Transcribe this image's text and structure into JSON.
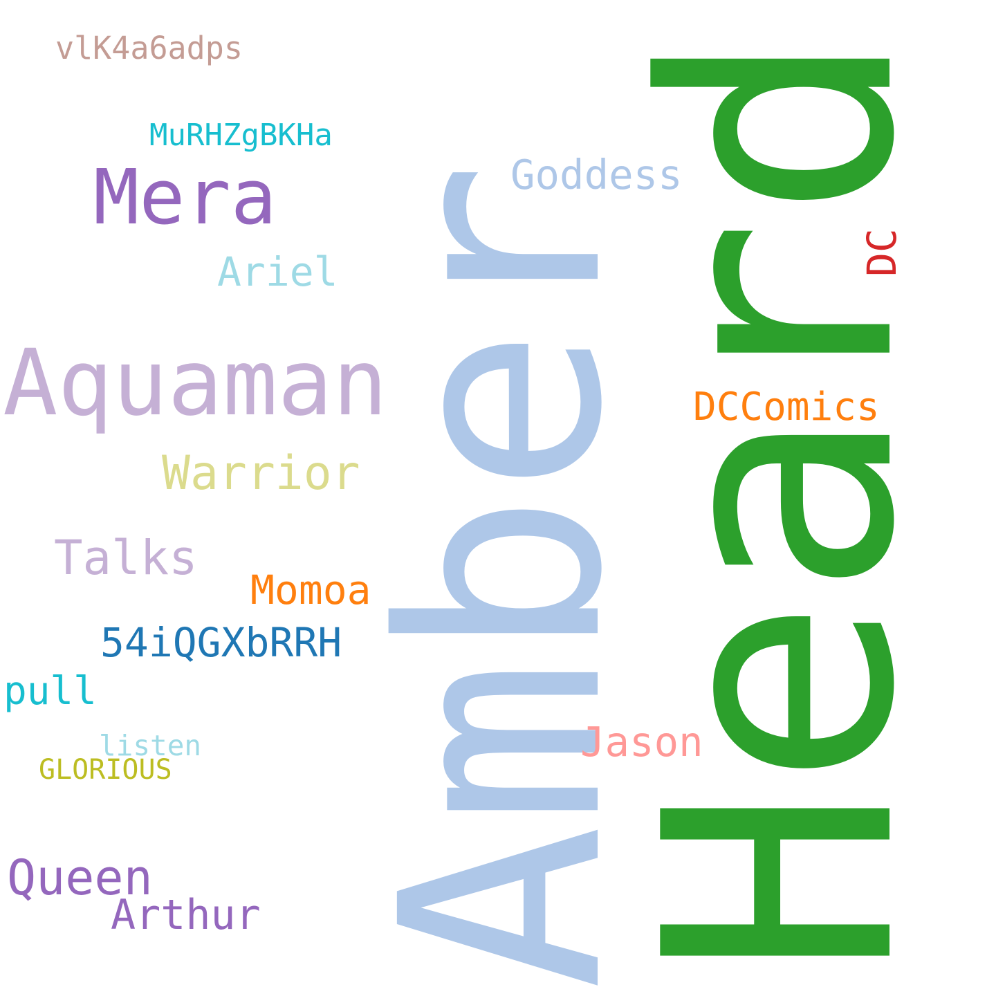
{
  "words": [
    {
      "key": "amber",
      "text": "Amber",
      "color": "#aec7e8"
    },
    {
      "key": "heard",
      "text": "Heard",
      "color": "#2ca02c"
    },
    {
      "key": "aquaman",
      "text": "Aquaman",
      "color": "#c5b0d5"
    },
    {
      "key": "mera",
      "text": "Mera",
      "color": "#9467bd"
    },
    {
      "key": "goddess",
      "text": "Goddess",
      "color": "#aec7e8"
    },
    {
      "key": "ariel",
      "text": "Ariel",
      "color": "#9edae5"
    },
    {
      "key": "dc",
      "text": "DC",
      "color": "#d62728"
    },
    {
      "key": "dccomics",
      "text": "DCComics",
      "color": "#ff7f0e"
    },
    {
      "key": "warrior",
      "text": "Warrior",
      "color": "#dbdb8d"
    },
    {
      "key": "talks",
      "text": "Talks",
      "color": "#c5b0d5"
    },
    {
      "key": "momoa",
      "text": "Momoa",
      "color": "#ff7f0e"
    },
    {
      "key": "code1",
      "text": "54iQGXbRRH",
      "color": "#1f77b4"
    },
    {
      "key": "pull",
      "text": "pull",
      "color": "#17becf"
    },
    {
      "key": "listen",
      "text": "listen",
      "color": "#9edae5"
    },
    {
      "key": "glorious",
      "text": "GLORIOUS",
      "color": "#bcbd22"
    },
    {
      "key": "jason",
      "text": "Jason",
      "color": "#ff9896"
    },
    {
      "key": "queen",
      "text": "Queen",
      "color": "#9467bd"
    },
    {
      "key": "arthur",
      "text": "Arthur",
      "color": "#9467bd"
    },
    {
      "key": "code2",
      "text": "MuRHZgBKHa",
      "color": "#17becf"
    },
    {
      "key": "code3",
      "text": "vlK4a6adps",
      "color": "#c49c94"
    }
  ]
}
